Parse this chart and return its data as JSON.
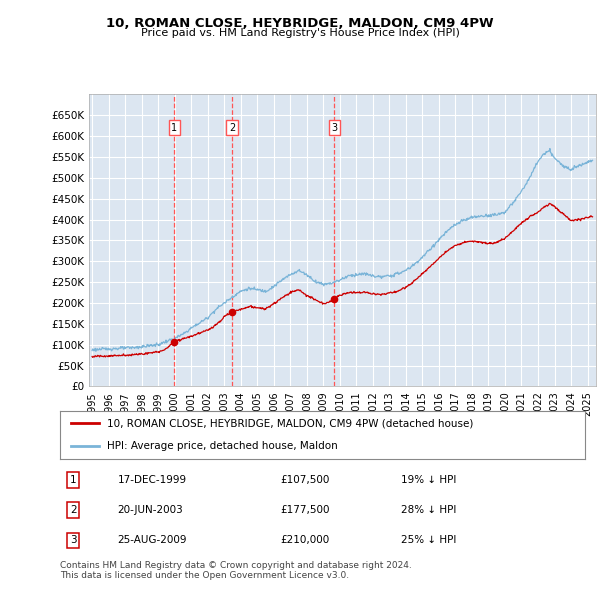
{
  "title": "10, ROMAN CLOSE, HEYBRIDGE, MALDON, CM9 4PW",
  "subtitle": "Price paid vs. HM Land Registry's House Price Index (HPI)",
  "bg_color": "#dce6f1",
  "grid_color": "#ffffff",
  "hpi_color": "#7ab4d8",
  "price_color": "#cc0000",
  "vline_color": "#ff5555",
  "sales": [
    {
      "date_num": 1999.96,
      "price": 107500,
      "label": "1"
    },
    {
      "date_num": 2003.47,
      "price": 177500,
      "label": "2"
    },
    {
      "date_num": 2009.65,
      "price": 210000,
      "label": "3"
    }
  ],
  "sale_annotations": [
    {
      "num": "1",
      "date": "17-DEC-1999",
      "price": "£107,500",
      "pct": "19% ↓ HPI"
    },
    {
      "num": "2",
      "date": "20-JUN-2003",
      "price": "£177,500",
      "pct": "28% ↓ HPI"
    },
    {
      "num": "3",
      "date": "25-AUG-2009",
      "price": "£210,000",
      "pct": "25% ↓ HPI"
    }
  ],
  "legend_entries": [
    "10, ROMAN CLOSE, HEYBRIDGE, MALDON, CM9 4PW (detached house)",
    "HPI: Average price, detached house, Maldon"
  ],
  "footer_line1": "Contains HM Land Registry data © Crown copyright and database right 2024.",
  "footer_line2": "This data is licensed under the Open Government Licence v3.0.",
  "ylim": [
    0,
    700000
  ],
  "yticks": [
    0,
    50000,
    100000,
    150000,
    200000,
    250000,
    300000,
    350000,
    400000,
    450000,
    500000,
    550000,
    600000,
    650000
  ],
  "xmin": 1994.8,
  "xmax": 2025.5,
  "hpi_anchors_x": [
    1995.0,
    1995.5,
    1996.0,
    1996.5,
    1997.0,
    1997.5,
    1998.0,
    1998.5,
    1999.0,
    1999.5,
    2000.0,
    2000.5,
    2001.0,
    2001.5,
    2002.0,
    2002.5,
    2003.0,
    2003.5,
    2004.0,
    2004.5,
    2005.0,
    2005.5,
    2006.0,
    2006.5,
    2007.0,
    2007.5,
    2008.0,
    2008.5,
    2009.0,
    2009.5,
    2010.0,
    2010.5,
    2011.0,
    2011.5,
    2012.0,
    2012.5,
    2013.0,
    2013.5,
    2014.0,
    2014.5,
    2015.0,
    2015.5,
    2016.0,
    2016.5,
    2017.0,
    2017.5,
    2018.0,
    2018.5,
    2019.0,
    2019.5,
    2020.0,
    2020.5,
    2021.0,
    2021.5,
    2022.0,
    2022.3,
    2022.7,
    2023.0,
    2023.5,
    2024.0,
    2024.5,
    2025.0,
    2025.3
  ],
  "hpi_anchors_y": [
    88000,
    89000,
    90000,
    91000,
    92000,
    93000,
    95000,
    98000,
    100000,
    108000,
    115000,
    125000,
    140000,
    152000,
    165000,
    185000,
    200000,
    215000,
    228000,
    235000,
    232000,
    228000,
    240000,
    255000,
    268000,
    278000,
    268000,
    252000,
    245000,
    248000,
    255000,
    265000,
    268000,
    270000,
    265000,
    262000,
    265000,
    270000,
    278000,
    292000,
    310000,
    330000,
    352000,
    372000,
    388000,
    398000,
    405000,
    408000,
    410000,
    412000,
    418000,
    440000,
    468000,
    500000,
    540000,
    555000,
    565000,
    548000,
    528000,
    522000,
    530000,
    538000,
    542000
  ],
  "price_anchors_x": [
    1995.0,
    1995.5,
    1996.0,
    1996.5,
    1997.0,
    1997.5,
    1998.0,
    1998.5,
    1999.0,
    1999.5,
    1999.96,
    2000.3,
    2000.8,
    2001.3,
    2001.8,
    2002.3,
    2002.8,
    2003.0,
    2003.47,
    2003.8,
    2004.2,
    2004.6,
    2005.0,
    2005.5,
    2006.0,
    2006.5,
    2007.0,
    2007.5,
    2008.0,
    2008.5,
    2009.0,
    2009.5,
    2009.65,
    2010.0,
    2010.5,
    2011.0,
    2011.5,
    2012.0,
    2012.5,
    2013.0,
    2013.5,
    2014.0,
    2014.5,
    2015.0,
    2015.5,
    2016.0,
    2016.5,
    2017.0,
    2017.5,
    2018.0,
    2018.5,
    2019.0,
    2019.5,
    2020.0,
    2020.5,
    2021.0,
    2021.3,
    2021.7,
    2022.0,
    2022.3,
    2022.7,
    2023.0,
    2023.3,
    2023.7,
    2024.0,
    2024.5,
    2025.0,
    2025.3
  ],
  "price_anchors_y": [
    72000,
    72500,
    73000,
    74000,
    75000,
    76000,
    78000,
    80000,
    83000,
    90000,
    107500,
    112000,
    118000,
    125000,
    132000,
    142000,
    158000,
    168000,
    177500,
    182000,
    188000,
    192000,
    188000,
    186000,
    198000,
    212000,
    225000,
    232000,
    218000,
    208000,
    198000,
    205000,
    210000,
    218000,
    225000,
    225000,
    226000,
    222000,
    220000,
    224000,
    228000,
    238000,
    252000,
    270000,
    288000,
    308000,
    325000,
    338000,
    345000,
    348000,
    346000,
    342000,
    345000,
    355000,
    372000,
    392000,
    400000,
    412000,
    418000,
    428000,
    438000,
    432000,
    420000,
    408000,
    398000,
    400000,
    405000,
    408000
  ]
}
